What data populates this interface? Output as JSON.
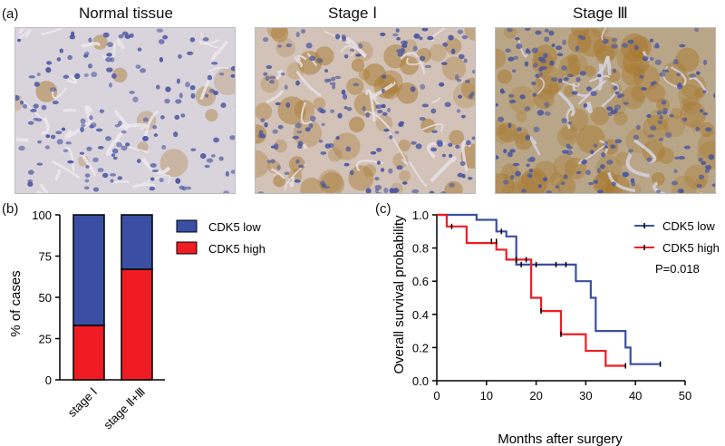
{
  "panel_a": {
    "label": "(a)",
    "titles": [
      "Normal tissue",
      "Stage Ⅰ",
      "Stage Ⅲ"
    ]
  },
  "colors": {
    "low": "#3a4fa3",
    "high": "#ef1c24",
    "tissue_bg": "#d6cfd8",
    "nucleus": "#4a56a0",
    "stain_brown": "#a8792f"
  },
  "chart_data": [
    {
      "panel_label": "(b)",
      "type": "bar",
      "stacked": true,
      "categories": [
        "stage Ⅰ",
        "stage Ⅱ+Ⅲ"
      ],
      "series": [
        {
          "name": "CDK5 high",
          "values": [
            33,
            67
          ]
        },
        {
          "name": "CDK5 low",
          "values": [
            67,
            33
          ]
        }
      ],
      "title": "",
      "xlabel": "",
      "ylabel": "% of cases",
      "ylim": [
        0,
        100
      ],
      "yticks": [
        "0",
        "25",
        "50",
        "75",
        "100"
      ],
      "legend": [
        "CDK5 low",
        "CDK5 high"
      ],
      "legend_position": "right"
    },
    {
      "panel_label": "(c)",
      "type": "line",
      "subtype": "kaplan-meier",
      "series": [
        {
          "name": "CDK5 low",
          "steps": [
            [
              0,
              1.0
            ],
            [
              8,
              0.97
            ],
            [
              12,
              0.9
            ],
            [
              14,
              0.87
            ],
            [
              16,
              0.7
            ],
            [
              28,
              0.6
            ],
            [
              31,
              0.5
            ],
            [
              32,
              0.3
            ],
            [
              38,
              0.2
            ],
            [
              39,
              0.1
            ],
            [
              45,
              0.1
            ]
          ],
          "censored": [
            [
              13,
              0.9
            ],
            [
              17,
              0.7
            ],
            [
              20,
              0.7
            ],
            [
              24,
              0.7
            ],
            [
              26,
              0.7
            ],
            [
              45,
              0.1
            ]
          ]
        },
        {
          "name": "CDK5 high",
          "steps": [
            [
              0,
              1.0
            ],
            [
              2,
              0.93
            ],
            [
              6,
              0.83
            ],
            [
              12,
              0.79
            ],
            [
              14,
              0.73
            ],
            [
              19,
              0.5
            ],
            [
              21,
              0.42
            ],
            [
              25,
              0.28
            ],
            [
              30,
              0.18
            ],
            [
              34,
              0.09
            ],
            [
              38,
              0.09
            ]
          ],
          "censored": [
            [
              3,
              0.93
            ],
            [
              11,
              0.84
            ],
            [
              12,
              0.84
            ],
            [
              16,
              0.73
            ],
            [
              18,
              0.73
            ],
            [
              21,
              0.42
            ],
            [
              25,
              0.28
            ],
            [
              38,
              0.09
            ]
          ]
        }
      ],
      "xlabel": "Months after surgery",
      "ylabel": "Overall survival probability",
      "xlim": [
        0,
        50
      ],
      "ylim": [
        0,
        1.0
      ],
      "xticks": [
        "0",
        "10",
        "20",
        "30",
        "40",
        "50"
      ],
      "yticks": [
        "0.0",
        "0.2",
        "0.4",
        "0.6",
        "0.8",
        "1.0"
      ],
      "legend": [
        "CDK5 low",
        "CDK5 high"
      ],
      "annotation": "P=0.018",
      "legend_position": "top-right"
    }
  ]
}
